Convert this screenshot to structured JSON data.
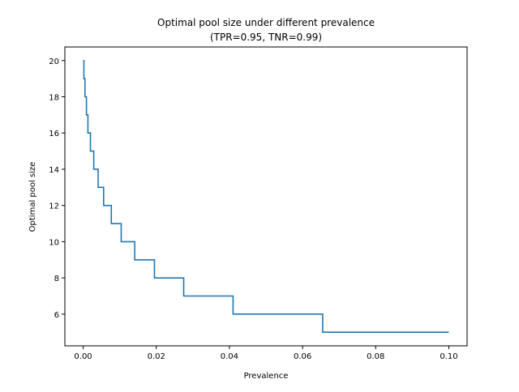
{
  "chart_data": {
    "type": "line",
    "title": "Optimal pool size under different prevalence",
    "subtitle": "(TPR=0.95, TNR=0.99)",
    "xlabel": "Prevalence",
    "ylabel": "Optimal pool size",
    "xlim": [
      -0.005,
      0.105
    ],
    "ylim": [
      4.25,
      20.75
    ],
    "xticks": [
      0.0,
      0.02,
      0.04,
      0.06,
      0.08,
      0.1
    ],
    "xtick_labels": [
      "0.00",
      "0.02",
      "0.04",
      "0.06",
      "0.08",
      "0.10"
    ],
    "yticks": [
      6,
      8,
      10,
      12,
      14,
      16,
      18,
      20
    ],
    "ytick_labels": [
      "6",
      "8",
      "10",
      "12",
      "14",
      "16",
      "18",
      "20"
    ],
    "grid": false,
    "legend": "none",
    "line_color": "#1f77b4",
    "series": [
      {
        "steps": [
          {
            "x_end": 0.0002,
            "y": 20
          },
          {
            "x_end": 0.0005,
            "y": 19
          },
          {
            "x_end": 0.0009,
            "y": 18
          },
          {
            "x_end": 0.0013,
            "y": 17
          },
          {
            "x_end": 0.002,
            "y": 16
          },
          {
            "x_end": 0.0029,
            "y": 15
          },
          {
            "x_end": 0.0041,
            "y": 14
          },
          {
            "x_end": 0.0056,
            "y": 13
          },
          {
            "x_end": 0.0077,
            "y": 12
          },
          {
            "x_end": 0.0104,
            "y": 11
          },
          {
            "x_end": 0.0141,
            "y": 10
          },
          {
            "x_end": 0.0195,
            "y": 9
          },
          {
            "x_end": 0.0275,
            "y": 8
          },
          {
            "x_end": 0.041,
            "y": 7
          },
          {
            "x_end": 0.0655,
            "y": 6
          },
          {
            "x_end": 0.1,
            "y": 5
          }
        ]
      }
    ]
  }
}
